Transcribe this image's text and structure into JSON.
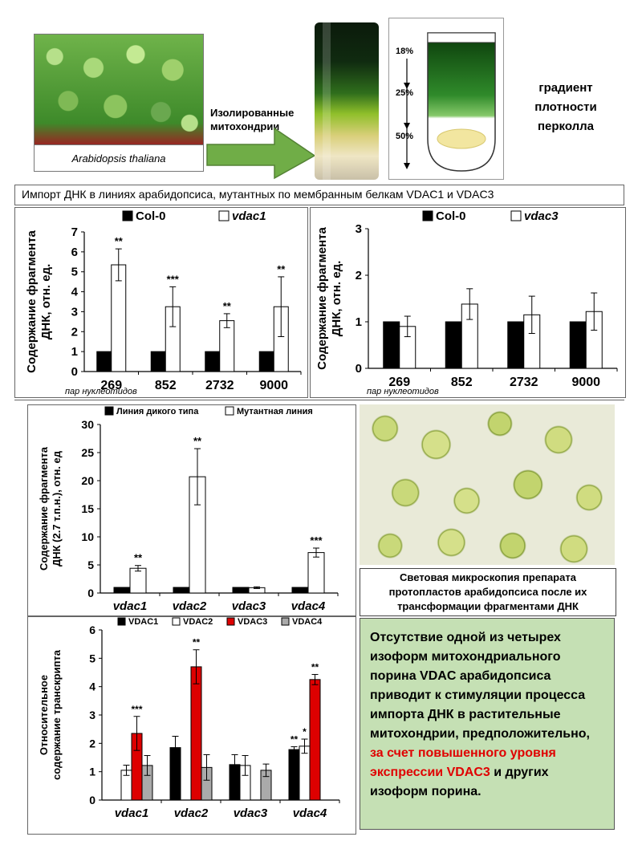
{
  "top": {
    "plant_caption": "Arabidopsis thaliana",
    "arrow_label_1": "Изолированные",
    "arrow_label_2": "митохондрии",
    "gradient_steps": [
      "18%",
      "25%",
      "50%"
    ],
    "gradient_label_lines": [
      "градиент",
      "плотности",
      "перколла"
    ],
    "section_title": "Импорт ДНК в линиях арабидопсиса, мутантных по мембранным белкам VDAC1 и VDAC3"
  },
  "colors": {
    "black_bar": "#000000",
    "white_bar": "#ffffff",
    "red_bar": "#dd0000",
    "conclusion_bg": "#c5e0b4",
    "conclusion_red": "#e00000"
  },
  "chart_data": [
    {
      "type": "bar",
      "ylabel_lines": [
        "Содержание фрагмента",
        "ДНК, отн. ед."
      ],
      "xlabel": "пар нуклеотидов",
      "categories": [
        "269",
        "852",
        "2732",
        "9000"
      ],
      "ylim": [
        0,
        7
      ],
      "yticks": [
        "0",
        "1",
        "2",
        "3",
        "4",
        "5",
        "6",
        "7"
      ],
      "series": [
        {
          "name": "Col-0",
          "values": [
            1,
            1,
            1,
            1
          ],
          "errors": [
            0,
            0,
            0,
            0
          ],
          "color": "#000000"
        },
        {
          "name": "vdac1",
          "values": [
            5.35,
            3.25,
            2.55,
            3.25
          ],
          "errors": [
            0.8,
            1.0,
            0.35,
            1.5
          ],
          "color": "#ffffff"
        }
      ],
      "significance": [
        "**",
        "***",
        "**",
        "**"
      ]
    },
    {
      "type": "bar",
      "ylabel_lines": [
        "Содержание фрагмента",
        "ДНК, отн. ед."
      ],
      "xlabel": "пар нуклеотидов",
      "categories": [
        "269",
        "852",
        "2732",
        "9000"
      ],
      "ylim": [
        0,
        3
      ],
      "yticks": [
        "0",
        "1",
        "2",
        "3"
      ],
      "series": [
        {
          "name": "Col-0",
          "values": [
            1,
            1,
            1,
            1
          ],
          "errors": [
            0,
            0,
            0,
            0
          ],
          "color": "#000000"
        },
        {
          "name": "vdac3",
          "values": [
            0.9,
            1.38,
            1.15,
            1.22
          ],
          "errors": [
            0.22,
            0.33,
            0.4,
            0.4
          ],
          "color": "#ffffff"
        }
      ],
      "significance": [
        "",
        "",
        "",
        ""
      ]
    },
    {
      "type": "bar",
      "ylabel_lines": [
        "Содержание фрагмента",
        "ДНК (2.7 т.п.н.), отн. ед"
      ],
      "xlabel": "",
      "categories": [
        "vdac1",
        "vdac2",
        "vdac3",
        "vdac4"
      ],
      "ylim": [
        0,
        30
      ],
      "yticks": [
        "0",
        "5",
        "10",
        "15",
        "20",
        "25",
        "30"
      ],
      "series": [
        {
          "name": "Линия дикого типа",
          "values": [
            1,
            1,
            1,
            1
          ],
          "errors": [
            0,
            0,
            0,
            0
          ],
          "color": "#000000"
        },
        {
          "name": "Мутантная линия",
          "values": [
            4.4,
            20.7,
            0.95,
            7.2
          ],
          "errors": [
            0.5,
            5.0,
            0.15,
            0.8
          ],
          "color": "#ffffff"
        }
      ],
      "significance": [
        "**",
        "**",
        "",
        "***"
      ]
    },
    {
      "type": "bar",
      "ylabel_lines": [
        "Относительное",
        "содержание транскрипта"
      ],
      "xlabel": "",
      "categories": [
        "vdac1",
        "vdac2",
        "vdac3",
        "vdac4"
      ],
      "ylim": [
        0,
        6
      ],
      "yticks": [
        "0",
        "1",
        "2",
        "3",
        "4",
        "5",
        "6"
      ],
      "series": [
        {
          "name": "VDAC1",
          "values": [
            null,
            1.85,
            1.25,
            1.78
          ],
          "errors": [
            0,
            0.4,
            0.35,
            0.1
          ],
          "color": "#000000"
        },
        {
          "name": "VDAC2",
          "values": [
            1.05,
            null,
            1.22,
            1.9
          ],
          "errors": [
            0.18,
            0,
            0.35,
            0.25
          ],
          "color": "#ffffff"
        },
        {
          "name": "VDAC3",
          "values": [
            2.35,
            4.7,
            null,
            4.25
          ],
          "errors": [
            0.6,
            0.6,
            0,
            0.18
          ],
          "color": "#dd0000"
        },
        {
          "name": "VDAC4",
          "values": [
            1.22,
            1.15,
            1.05,
            null
          ],
          "errors": [
            0.35,
            0.45,
            0.22,
            0
          ],
          "color": "#aaaaaa"
        }
      ],
      "significance": [
        {
          "VDAC3": "***"
        },
        {
          "VDAC3": "**"
        },
        {},
        {
          "VDAC1": "**",
          "VDAC2": "*",
          "VDAC3": "**"
        }
      ]
    }
  ],
  "micro": {
    "caption_lines": [
      "Световая микроскопия препарата",
      "протопластов арабидопсиса после их",
      "трансформации фрагментами ДНК"
    ]
  },
  "conclusion": {
    "text_before": "Отсутствие одной из четырех изоформ митохондриального порина VDAC арабидопсиса приводит к стимуляции процесса импорта ДНК в растительные митохондрии, предположительно, ",
    "text_red": "за счет повышенного уровня экспрессии VDAC3",
    "text_after": " и других изоформ порина."
  }
}
